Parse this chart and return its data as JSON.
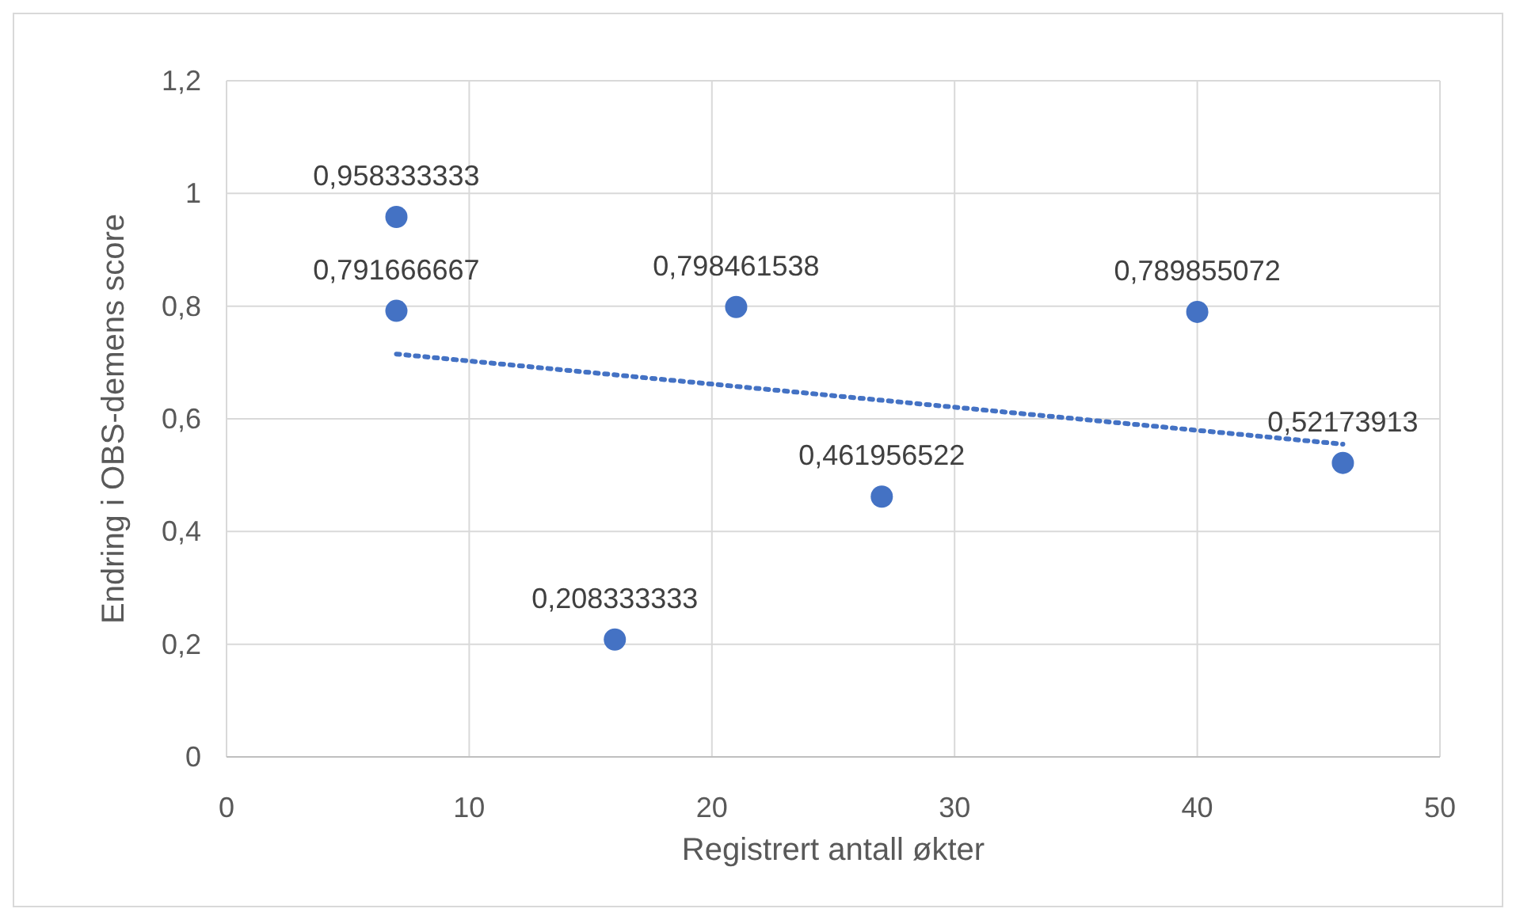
{
  "chart_data": {
    "type": "scatter",
    "xlabel": "Registrert antall økter",
    "ylabel": "Endring i OBS-demens score",
    "xlim": [
      0,
      50
    ],
    "xticks": [
      0,
      10,
      20,
      30,
      40,
      50
    ],
    "ylim": [
      0,
      1.2
    ],
    "yticks": [
      0,
      {
        "value": 0.2,
        "label": "0,2"
      },
      {
        "value": 0.4,
        "label": "0,4"
      },
      {
        "value": 0.6,
        "label": "0,6"
      },
      {
        "value": 0.8,
        "label": "0,8"
      },
      1,
      {
        "value": 1.2,
        "label": "1,2"
      }
    ],
    "grid": true,
    "marker": "circle",
    "series": [
      {
        "color": "#4472c4",
        "x": [
          7,
          7,
          16,
          21,
          27,
          40,
          46
        ],
        "values": [
          0.958333333,
          0.791666667,
          0.208333333,
          0.798461538,
          0.461956522,
          0.789855072,
          0.52173913
        ],
        "value_labels": [
          "0,958333333",
          "0,791666667",
          "0,208333333",
          "0,798461538",
          "0,461956522",
          "0,789855072",
          "0,52173913"
        ]
      },
      {
        "type": "line",
        "color": "#4472c4",
        "x": [
          7,
          46
        ],
        "values": [
          0.715,
          0.555
        ],
        "line_style": "dotted",
        "marker": "none"
      }
    ]
  }
}
